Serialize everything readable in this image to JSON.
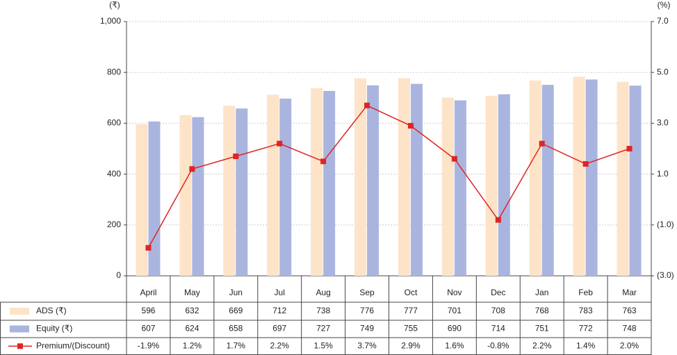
{
  "chart_data": {
    "type": "bar",
    "y_label": "(₹)",
    "y2_label": "(%)",
    "categories": [
      "April",
      "May",
      "Jun",
      "Jul",
      "Aug",
      "Sep",
      "Oct",
      "Nov",
      "Dec",
      "Jan",
      "Feb",
      "Mar"
    ],
    "series": [
      {
        "name": "ADS (₹)",
        "type": "bar",
        "color": "#fde3c8",
        "values": [
          596,
          632,
          669,
          712,
          738,
          776,
          777,
          701,
          708,
          768,
          783,
          763
        ]
      },
      {
        "name": "Equity (₹)",
        "type": "bar",
        "color": "#aab5df",
        "values": [
          607,
          624,
          658,
          697,
          727,
          749,
          755,
          690,
          714,
          751,
          772,
          748
        ]
      },
      {
        "name": "Premium/(Discount)",
        "type": "line",
        "axis": "y2",
        "color": "#e02424",
        "values": [
          -1.9,
          1.2,
          1.7,
          2.2,
          1.5,
          3.7,
          2.9,
          1.6,
          -0.8,
          2.2,
          1.4,
          2.0
        ],
        "value_labels": [
          "-1.9%",
          "1.2%",
          "1.7%",
          "2.2%",
          "1.5%",
          "3.7%",
          "2.9%",
          "1.6%",
          "-0.8%",
          "2.2%",
          "1.4%",
          "2.0%"
        ]
      }
    ],
    "ylim": [
      0,
      1000
    ],
    "yticks": [
      0,
      200,
      400,
      600,
      800,
      {
        "value": 1000,
        "label": "1,000"
      }
    ],
    "y2lim": [
      -3,
      7
    ],
    "y2ticks": [
      {
        "value": -3,
        "label": "(3.0)"
      },
      {
        "value": -1,
        "label": "(1.0)"
      },
      {
        "value": 1,
        "label": "1.0"
      },
      {
        "value": 3,
        "label": "3.0"
      },
      {
        "value": 5,
        "label": "5.0"
      },
      {
        "value": 7,
        "label": "7.0"
      }
    ],
    "grid": true
  }
}
